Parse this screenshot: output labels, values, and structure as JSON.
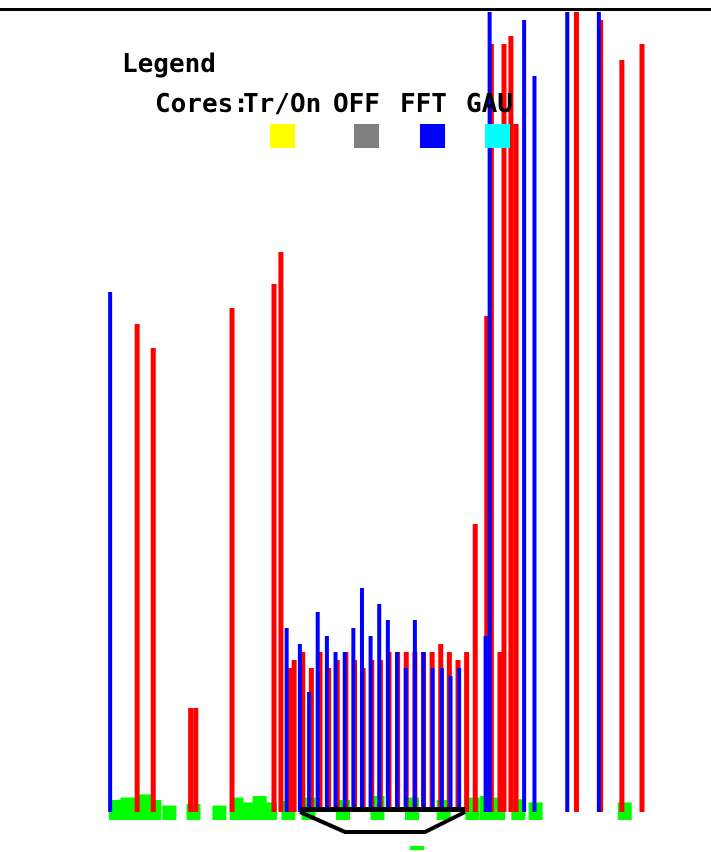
{
  "legend": {
    "title": "Legend",
    "cores_label": "Cores:",
    "items": [
      {
        "label": "Tr/On",
        "color": "#ffff00"
      },
      {
        "label": "OFF",
        "color": "#808080"
      },
      {
        "label": "FFT",
        "color": "#0000ff"
      },
      {
        "label": "GAU",
        "color": "#00ffff"
      }
    ]
  },
  "colors": {
    "red": "#ff0000",
    "blue": "#0000ff",
    "green": "#00ff00",
    "black": "#000000",
    "frame": "#000000"
  },
  "chart_data": {
    "type": "bar",
    "title": "",
    "xlabel": "",
    "ylabel": "",
    "ylim": [
      0,
      100
    ],
    "x_range": [
      0,
      100
    ],
    "series": [
      {
        "color": "blue",
        "values": [
          [
            3.5,
            65
          ],
          [
            34.2,
            23
          ],
          [
            36.5,
            21
          ],
          [
            38.1,
            15
          ],
          [
            39.6,
            25
          ],
          [
            41.2,
            22
          ],
          [
            42.7,
            20
          ],
          [
            44.3,
            20
          ],
          [
            45.8,
            23
          ],
          [
            47.3,
            28
          ],
          [
            48.8,
            22
          ],
          [
            50.3,
            26
          ],
          [
            51.8,
            24
          ],
          [
            53.4,
            20
          ],
          [
            54.9,
            18
          ],
          [
            56.5,
            24
          ],
          [
            58.0,
            20
          ],
          [
            59.6,
            18
          ],
          [
            61.2,
            18
          ],
          [
            62.7,
            17
          ],
          [
            64.2,
            18
          ],
          [
            68.8,
            22
          ],
          [
            69.5,
            100
          ],
          [
            75.5,
            99
          ],
          [
            77.3,
            92
          ],
          [
            83.0,
            100
          ],
          [
            88.5,
            100
          ]
        ]
      },
      {
        "color": "red",
        "values": [
          [
            8.2,
            61
          ],
          [
            11.0,
            58
          ],
          [
            17.5,
            13
          ],
          [
            18.4,
            13
          ],
          [
            24.7,
            63
          ],
          [
            32.0,
            66
          ],
          [
            33.2,
            70
          ],
          [
            34.8,
            18
          ],
          [
            35.5,
            19
          ],
          [
            37.0,
            20
          ],
          [
            38.5,
            18
          ],
          [
            40.0,
            20
          ],
          [
            41.5,
            18
          ],
          [
            43.0,
            19
          ],
          [
            44.5,
            20
          ],
          [
            46.0,
            19
          ],
          [
            47.5,
            18
          ],
          [
            49.0,
            19
          ],
          [
            50.5,
            19
          ],
          [
            52.0,
            20
          ],
          [
            53.5,
            20
          ],
          [
            55.0,
            20
          ],
          [
            56.5,
            20
          ],
          [
            58.0,
            20
          ],
          [
            59.5,
            20
          ],
          [
            61.0,
            21
          ],
          [
            62.5,
            20
          ],
          [
            64.0,
            19
          ],
          [
            65.5,
            20
          ],
          [
            67.0,
            36
          ],
          [
            69.0,
            62
          ],
          [
            69.8,
            96
          ],
          [
            71.3,
            20
          ],
          [
            72.0,
            96
          ],
          [
            73.2,
            97
          ],
          [
            74.1,
            86
          ],
          [
            84.6,
            100
          ],
          [
            88.8,
            99
          ],
          [
            92.5,
            94
          ],
          [
            96.0,
            96
          ]
        ]
      },
      {
        "color": "green",
        "values": [
          [
            4.5,
            1.5
          ],
          [
            6.5,
            1.8
          ],
          [
            8.0,
            1.8
          ],
          [
            9.6,
            2.2
          ],
          [
            11.2,
            1.5
          ],
          [
            13.8,
            0.8
          ],
          [
            18.0,
            1.0
          ],
          [
            22.5,
            0.8
          ],
          [
            25.5,
            1.8
          ],
          [
            27.3,
            1.2
          ],
          [
            29.5,
            2.0
          ],
          [
            31.3,
            1.2
          ],
          [
            34.5,
            1.4
          ],
          [
            38.0,
            1.8
          ],
          [
            44.0,
            1.5
          ],
          [
            50.0,
            2.0
          ],
          [
            56.0,
            1.8
          ],
          [
            61.5,
            1.5
          ],
          [
            66.5,
            1.8
          ],
          [
            69.0,
            2.0
          ],
          [
            71.0,
            1.8
          ],
          [
            74.5,
            1.6
          ],
          [
            77.5,
            1.2
          ],
          [
            93.0,
            1.2
          ]
        ]
      }
    ]
  }
}
